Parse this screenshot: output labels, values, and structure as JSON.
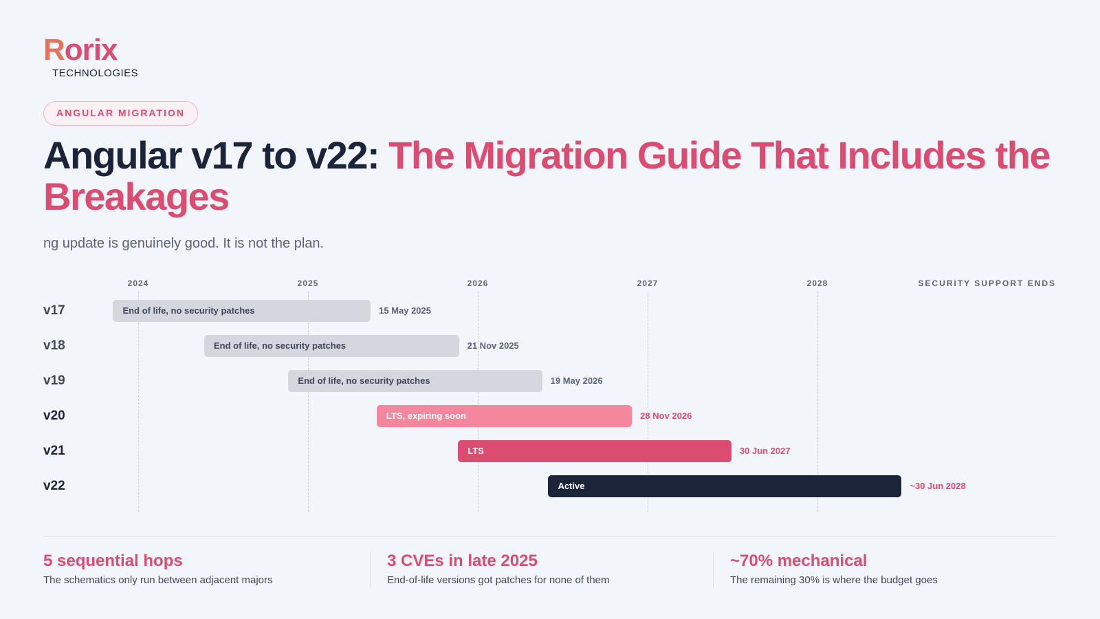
{
  "logo": {
    "word_first": "R",
    "word_rest": "orix",
    "sub": "TECHNOLOGIES"
  },
  "tag": "ANGULAR MIGRATION",
  "title": {
    "dark": "Angular v17 to v22: ",
    "accent": "The Migration Guide That Includes the Breakages"
  },
  "subtitle": "ng update is genuinely good. It is not the plan.",
  "colors": {
    "accent": "#dc4b70",
    "dark": "#1b2438",
    "eol": "#d4d7dd",
    "lts_expiring": "#f4879d",
    "lts": "#dc4b70",
    "active": "#1b2438"
  },
  "chart_data": {
    "type": "timeline",
    "x_axis": {
      "ticks": [
        "2024",
        "2025",
        "2026",
        "2027",
        "2028"
      ],
      "right_header": "SECURITY SUPPORT ENDS",
      "grid": true
    },
    "series": [
      {
        "version": "v17",
        "start": "2023-11-08",
        "end": "2025-05-15",
        "status": "End of life, no security patches",
        "end_label": "15 May 2025",
        "kind": "eol"
      },
      {
        "version": "v18",
        "start": "2024-05-22",
        "end": "2025-11-21",
        "status": "End of life, no security patches",
        "end_label": "21 Nov 2025",
        "kind": "eol"
      },
      {
        "version": "v19",
        "start": "2024-11-19",
        "end": "2026-05-19",
        "status": "End of life, no security patches",
        "end_label": "19 May 2026",
        "kind": "eol"
      },
      {
        "version": "v20",
        "start": "2025-05-28",
        "end": "2026-11-28",
        "status": "LTS, expiring soon",
        "end_label": "28 Nov 2026",
        "kind": "lts_expiring"
      },
      {
        "version": "v21",
        "start": "2025-11-19",
        "end": "2027-06-30",
        "status": "LTS",
        "end_label": "30 Jun 2027",
        "kind": "lts"
      },
      {
        "version": "v22",
        "start": "2026-06-01",
        "end": "2028-06-30",
        "status": "Active",
        "end_label": "~30 Jun 2028",
        "kind": "active"
      }
    ]
  },
  "stats": [
    {
      "value": "5 sequential hops",
      "desc": "The schematics only run between adjacent majors"
    },
    {
      "value": "3 CVEs in late 2025",
      "desc": "End-of-life versions got patches for none of them"
    },
    {
      "value": "~70% mechanical",
      "desc": "The remaining 30% is where the budget goes"
    }
  ]
}
